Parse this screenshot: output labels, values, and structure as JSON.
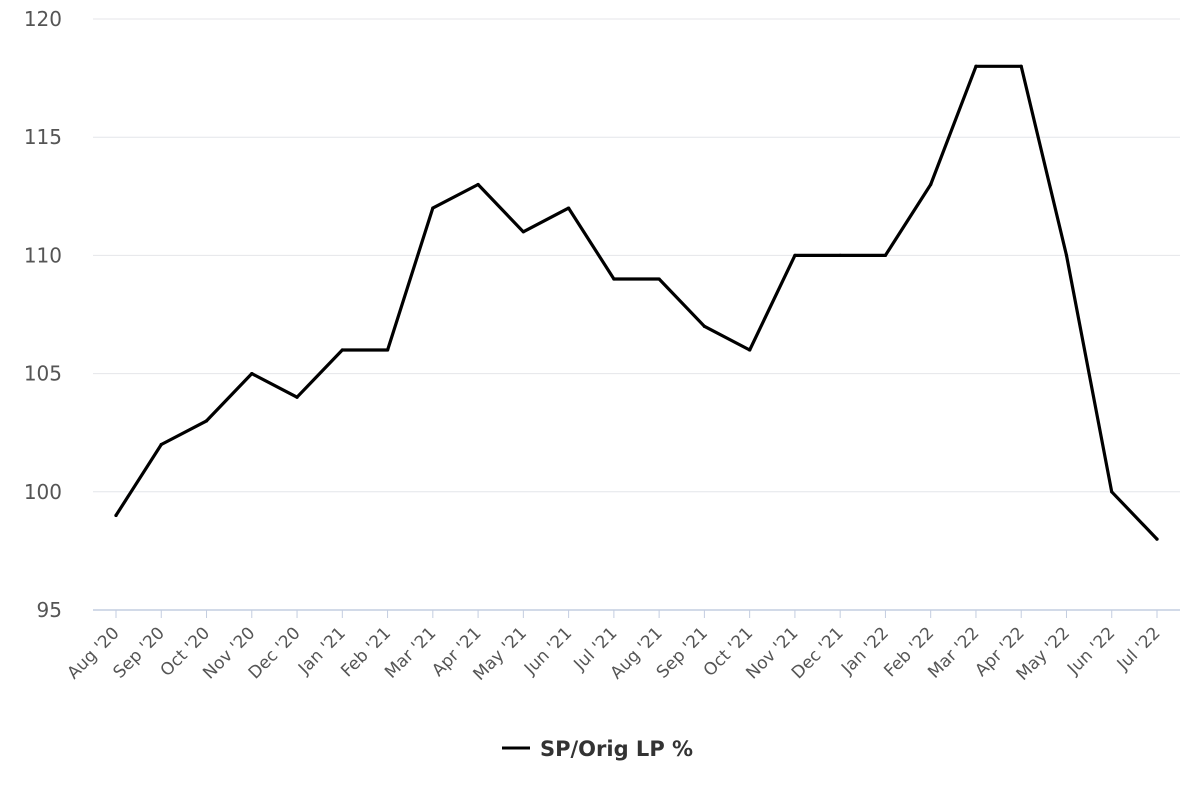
{
  "chart_data": {
    "type": "line",
    "title": "",
    "xlabel": "",
    "ylabel": "",
    "categories": [
      "Aug '20",
      "Sep '20",
      "Oct '20",
      "Nov '20",
      "Dec '20",
      "Jan '21",
      "Feb '21",
      "Mar '21",
      "Apr '21",
      "May '21",
      "Jun '21",
      "Jul '21",
      "Aug '21",
      "Sep '21",
      "Oct '21",
      "Nov '21",
      "Dec '21",
      "Jan '22",
      "Feb '22",
      "Mar '22",
      "Apr '22",
      "May '22",
      "Jun '22",
      "Jul '22"
    ],
    "series": [
      {
        "name": "SP/Orig LP %",
        "values": [
          99,
          102,
          103,
          105,
          104,
          106,
          106,
          112,
          113,
          111,
          112,
          109,
          109,
          107,
          106,
          110,
          110,
          110,
          113,
          118,
          118,
          110,
          100,
          98
        ],
        "color": "#000000"
      }
    ],
    "ylim": [
      95,
      120
    ],
    "yticks": [
      95,
      100,
      105,
      110,
      115,
      120
    ],
    "grid": true,
    "legend_position": "bottom-center"
  }
}
